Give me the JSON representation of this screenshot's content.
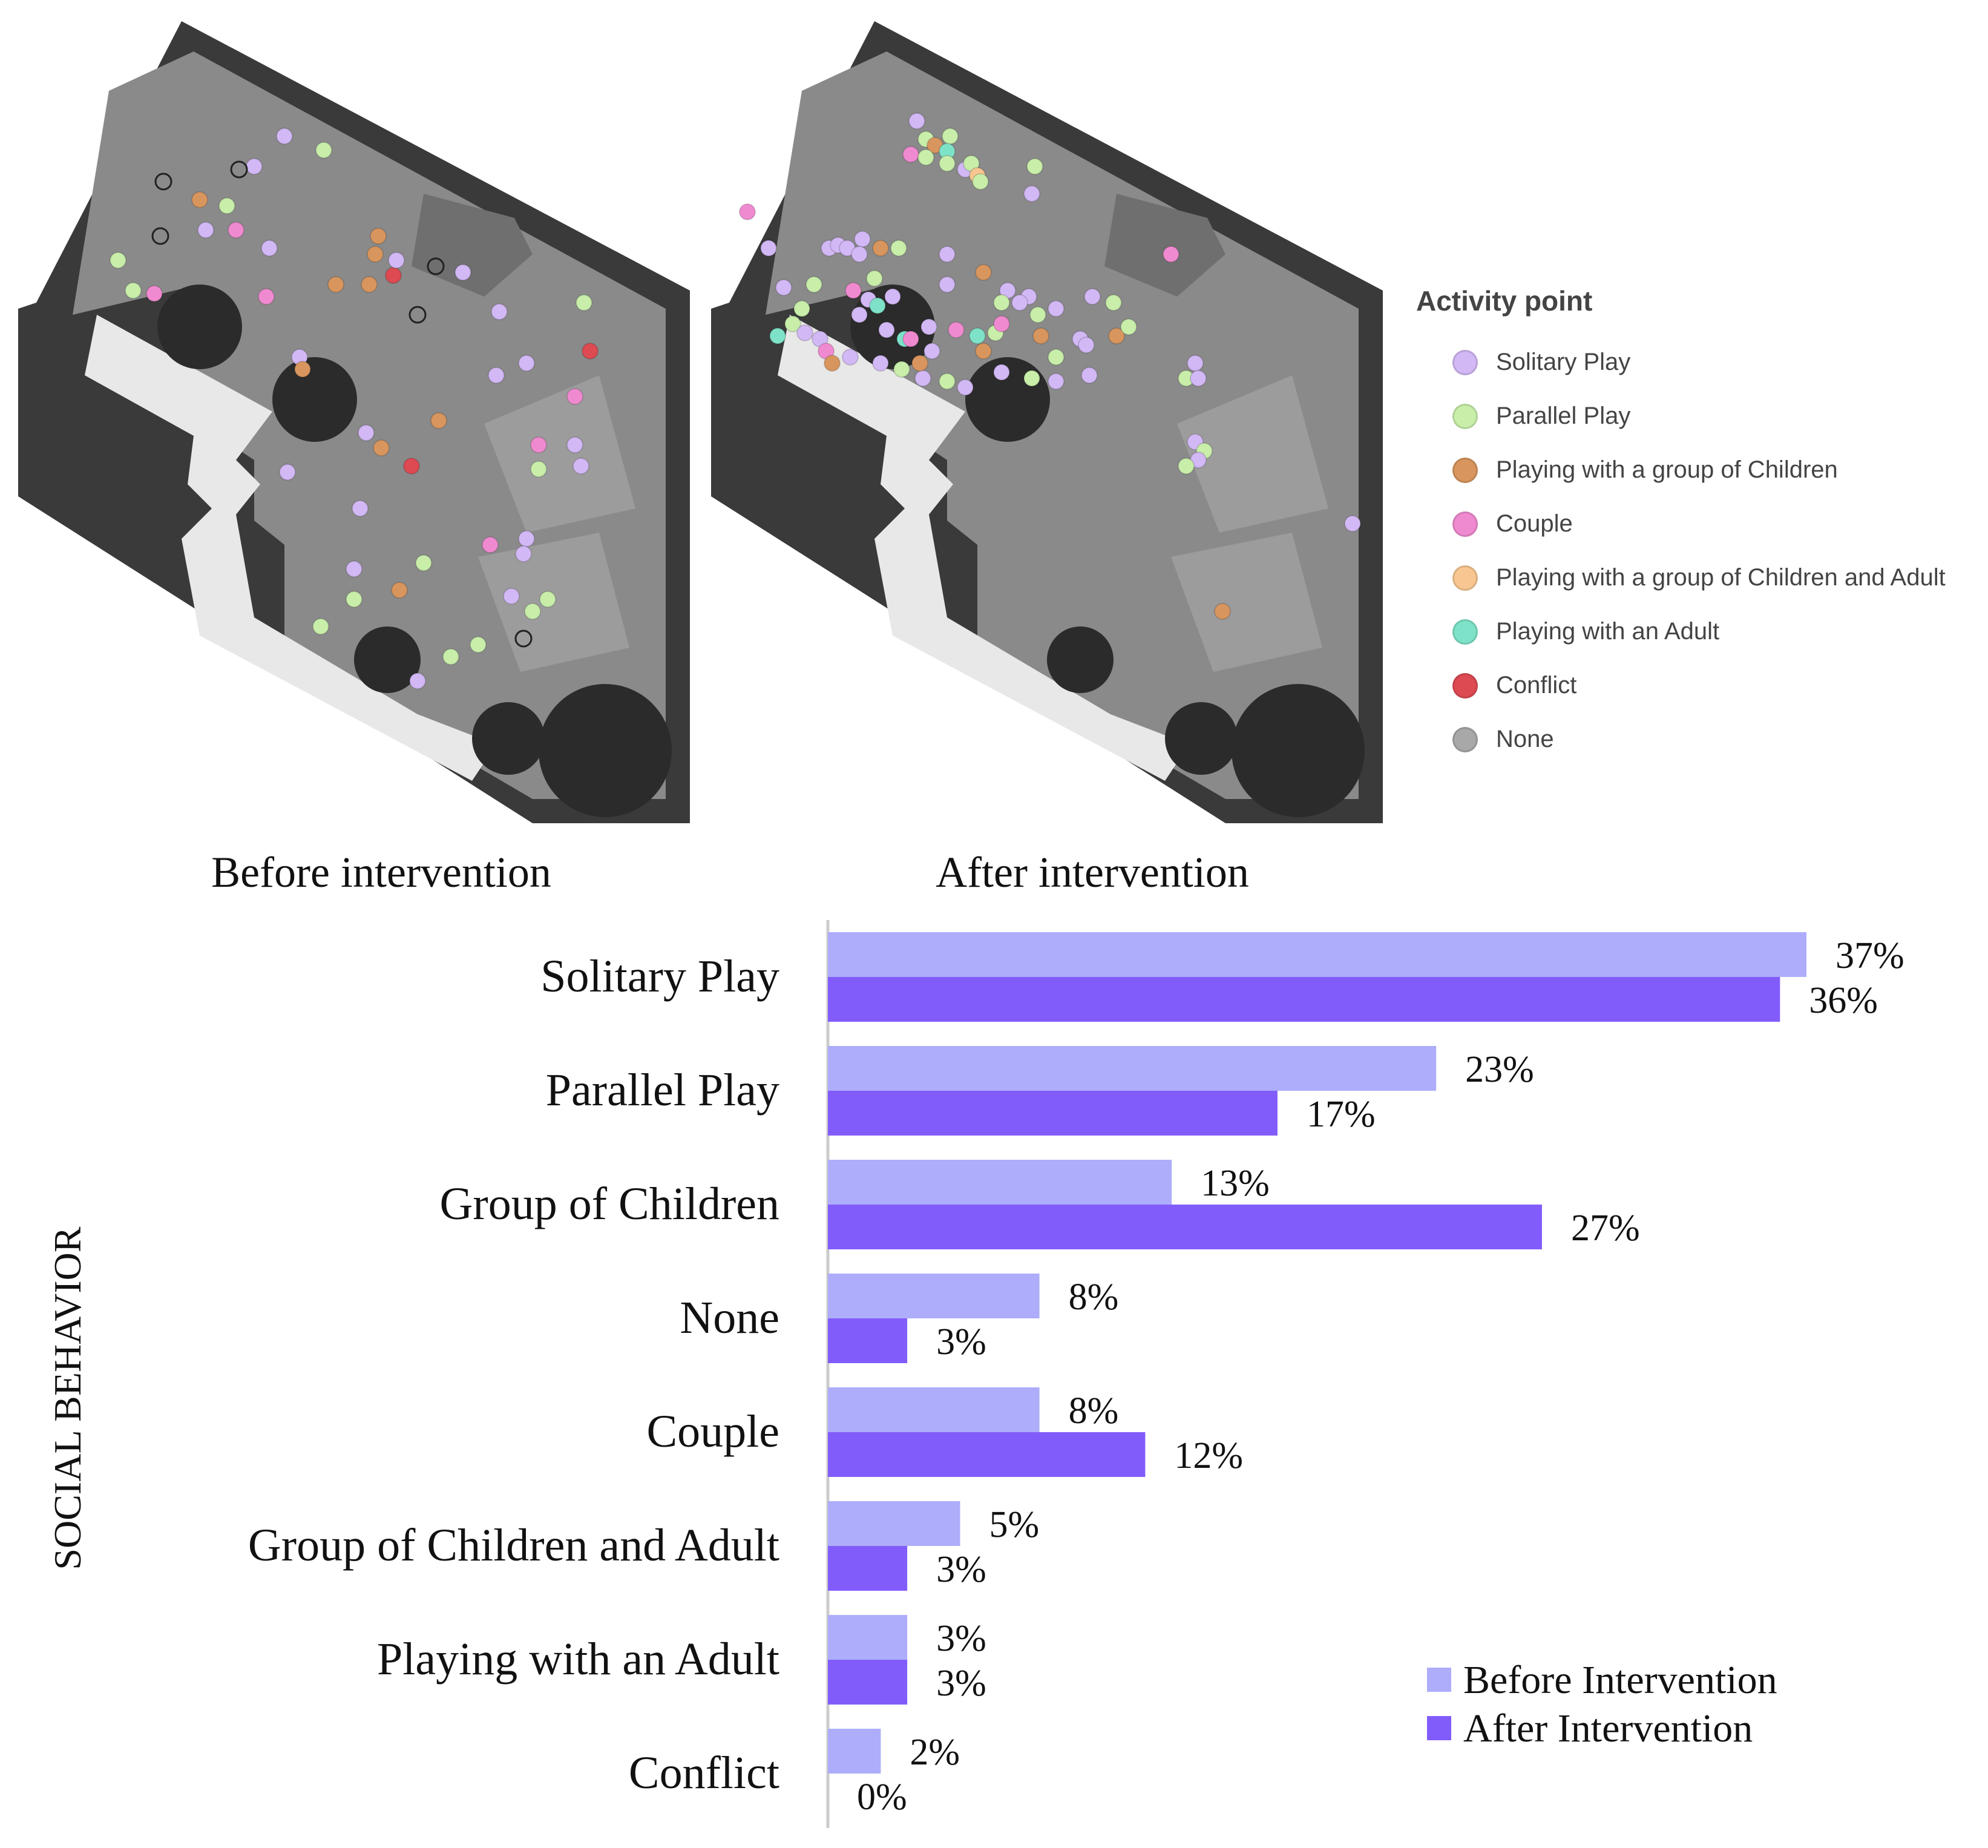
{
  "maps": {
    "before_caption": "Before intervention",
    "after_caption": "After intervention"
  },
  "activity_legend": {
    "title": "Activity point",
    "items": [
      {
        "label": "Solitary Play",
        "color": "#d2b8f5"
      },
      {
        "label": "Parallel Play",
        "color": "#c8eeaa"
      },
      {
        "label": "Playing with a group of Children",
        "color": "#d8965e"
      },
      {
        "label": "Couple",
        "color": "#f08ad0"
      },
      {
        "label": "Playing with a group of Children and Adult",
        "color": "#f8c690"
      },
      {
        "label": "Playing with an Adult",
        "color": "#7ee2c8"
      },
      {
        "label": "Conflict",
        "color": "#dd4a52"
      },
      {
        "label": "None",
        "color": "#a8a8a8"
      }
    ]
  },
  "chart_data": {
    "type": "bar",
    "orientation": "horizontal",
    "ylabel": "SOCIAL BEHAVIOR",
    "xlabel": "",
    "categories": [
      "Solitary Play",
      "Parallel Play",
      "Group of Children",
      "None",
      "Couple",
      "Group of Children and Adult",
      "Playing with an Adult",
      "Conflict"
    ],
    "series": [
      {
        "name": "Before Intervention",
        "color": "#adadfb",
        "values": [
          37,
          23,
          13,
          8,
          8,
          5,
          3,
          2
        ],
        "labels": [
          "37%",
          "23%",
          "13%",
          "8%",
          "8%",
          "5%",
          "3%",
          "2%"
        ]
      },
      {
        "name": "After Intervention",
        "color": "#825cfb",
        "values": [
          36,
          17,
          27,
          3,
          12,
          3,
          3,
          0
        ],
        "labels": [
          "36%",
          "17%",
          "27%",
          "3%",
          "12%",
          "3%",
          "3%",
          "0%"
        ]
      }
    ],
    "xlim": [
      0,
      37
    ],
    "legend_position": "bottom-right"
  }
}
